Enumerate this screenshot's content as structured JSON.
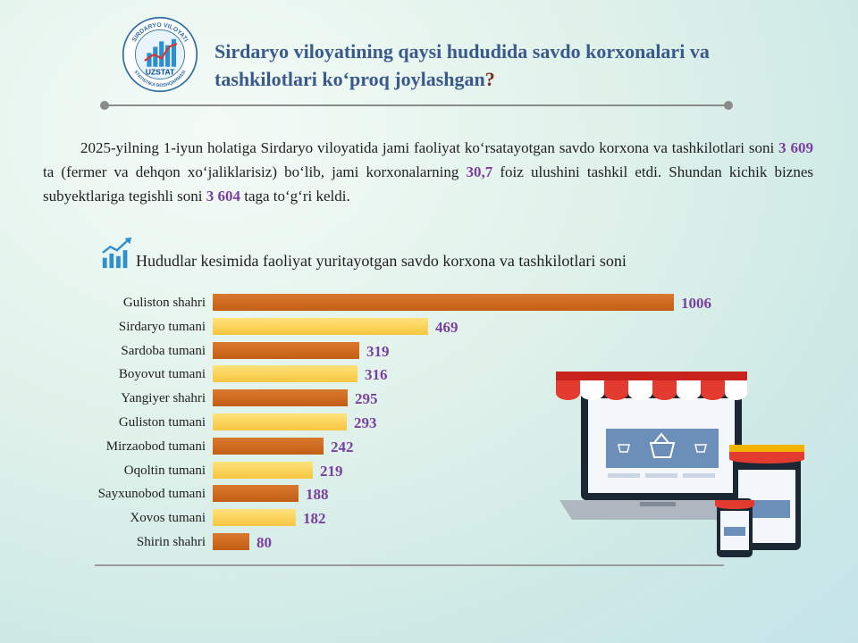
{
  "header": {
    "title_main": "Sirdaryo viloyatining qaysi hududida savdo korxonalari va tashkilotlari ko‘proq joylashgan",
    "title_mark": "?",
    "logo_text_top": "SIRDARYO VILOYATI",
    "logo_brand": "UZSTAT",
    "logo_text_bottom": "STATISTIKA BOSHQARMASI"
  },
  "paragraph": {
    "p1": "2025-yilning 1-iyun holatiga Sirdaryo viloyatida jami faoliyat ko‘rsatayotgan savdo korxona va tashkilotlari soni ",
    "v1": "3 609",
    "p2": " ta (fermer va dehqon xo‘jaliklarisiz) bo‘lib, jami korxonalarning ",
    "v2": "30,7",
    "p3": " foiz ulushini tashkil etdi. Shundan kichik biznes subyektlariga tegishli soni ",
    "v3": "3 604",
    "p4": " taga to‘g‘ri keldi."
  },
  "chart_data": {
    "type": "bar",
    "orientation": "horizontal",
    "title": "Hududlar kesimida faoliyat yuritayotgan savdo korxona va tashkilotlari soni",
    "categories": [
      "Guliston shahri",
      "Sirdaryo tumani",
      "Sardoba tumani",
      "Boyovut tumani",
      "Yangiyer shahri",
      "Guliston tumani",
      "Mirzaobod tumani",
      "Oqoltin tumani",
      "Sayxunobod tumani",
      "Xovos tumani",
      "Shirin shahri"
    ],
    "values": [
      1006,
      469,
      319,
      316,
      295,
      293,
      242,
      219,
      188,
      182,
      80
    ],
    "colors": [
      "#c8621a",
      "#f9cf55"
    ]
  }
}
